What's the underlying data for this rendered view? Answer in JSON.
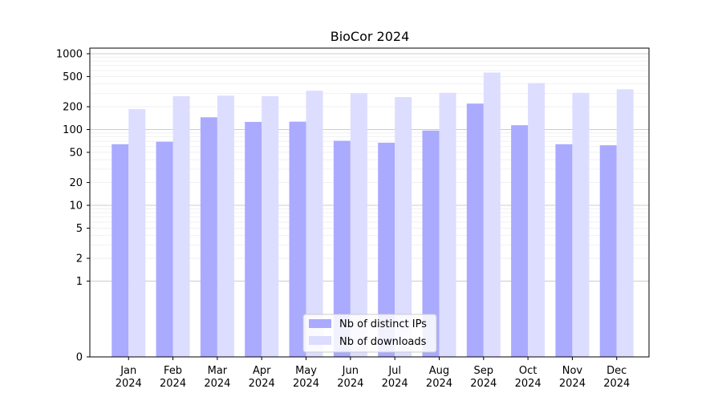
{
  "chart_data": {
    "type": "bar",
    "title": "BioCor 2024",
    "xlabel": "",
    "ylabel": "",
    "yscale": "symlog",
    "ylim": [
      0,
      1000
    ],
    "yticks": [
      {
        "value": 0,
        "label": "0"
      },
      {
        "value": 1,
        "label": "1"
      },
      {
        "value": 2,
        "label": "2"
      },
      {
        "value": 5,
        "label": "5"
      },
      {
        "value": 10,
        "label": "10"
      },
      {
        "value": 20,
        "label": "20"
      },
      {
        "value": 50,
        "label": "50"
      },
      {
        "value": 100,
        "label": "100"
      },
      {
        "value": 200,
        "label": "200"
      },
      {
        "value": 500,
        "label": "500"
      },
      {
        "value": 1000,
        "label": "1000"
      }
    ],
    "categories": [
      {
        "month": "Jan",
        "year": "2024"
      },
      {
        "month": "Feb",
        "year": "2024"
      },
      {
        "month": "Mar",
        "year": "2024"
      },
      {
        "month": "Apr",
        "year": "2024"
      },
      {
        "month": "May",
        "year": "2024"
      },
      {
        "month": "Jun",
        "year": "2024"
      },
      {
        "month": "Jul",
        "year": "2024"
      },
      {
        "month": "Aug",
        "year": "2024"
      },
      {
        "month": "Sep",
        "year": "2024"
      },
      {
        "month": "Oct",
        "year": "2024"
      },
      {
        "month": "Nov",
        "year": "2024"
      },
      {
        "month": "Dec",
        "year": "2024"
      }
    ],
    "series": [
      {
        "name": "Nb of distinct IPs",
        "color": "#aaaaff",
        "values": [
          64,
          69,
          145,
          126,
          127,
          71,
          67,
          97,
          220,
          114,
          64,
          62
        ]
      },
      {
        "name": "Nb of downloads",
        "color": "#ddddff",
        "values": [
          186,
          275,
          280,
          275,
          325,
          300,
          268,
          305,
          565,
          410,
          305,
          340
        ]
      }
    ],
    "grid": true,
    "legend_position": "lower-center"
  }
}
